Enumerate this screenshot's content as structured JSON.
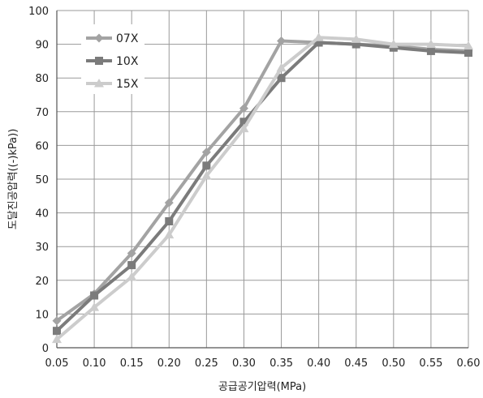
{
  "chart_data": {
    "type": "line",
    "xlabel": "공급공기압력(MPa)",
    "ylabel": "도달진공압력((-)kPa))",
    "x": [
      0.05,
      0.1,
      0.15,
      0.2,
      0.25,
      0.3,
      0.35,
      0.4,
      0.45,
      0.5,
      0.55,
      0.6
    ],
    "x_tick_labels": [
      "0.05",
      "0.10",
      "0.15",
      "0.20",
      "0.25",
      "0.30",
      "0.35",
      "0.40",
      "0.45",
      "0.50",
      "0.55",
      "0.60"
    ],
    "y_ticks": [
      0,
      10,
      20,
      30,
      40,
      50,
      60,
      70,
      80,
      90,
      100
    ],
    "ylim": [
      0,
      100
    ],
    "grid": true,
    "legend_position": "top-left",
    "series": [
      {
        "name": "07X",
        "marker": "diamond",
        "color": "#a3a3a3",
        "values": [
          8,
          16,
          28,
          43,
          58,
          71,
          91,
          90.5,
          90,
          89.5,
          88.5,
          88
        ]
      },
      {
        "name": "10X",
        "marker": "square",
        "color": "#7b7b7b",
        "values": [
          5,
          15.5,
          24.5,
          37.5,
          54,
          67,
          80,
          90.5,
          90,
          89,
          88,
          87.5
        ]
      },
      {
        "name": "15X",
        "marker": "triangle",
        "color": "#cccccc",
        "values": [
          2.5,
          12,
          21,
          33.5,
          51,
          65,
          83,
          92,
          91.5,
          90,
          90,
          89.5
        ]
      }
    ]
  }
}
